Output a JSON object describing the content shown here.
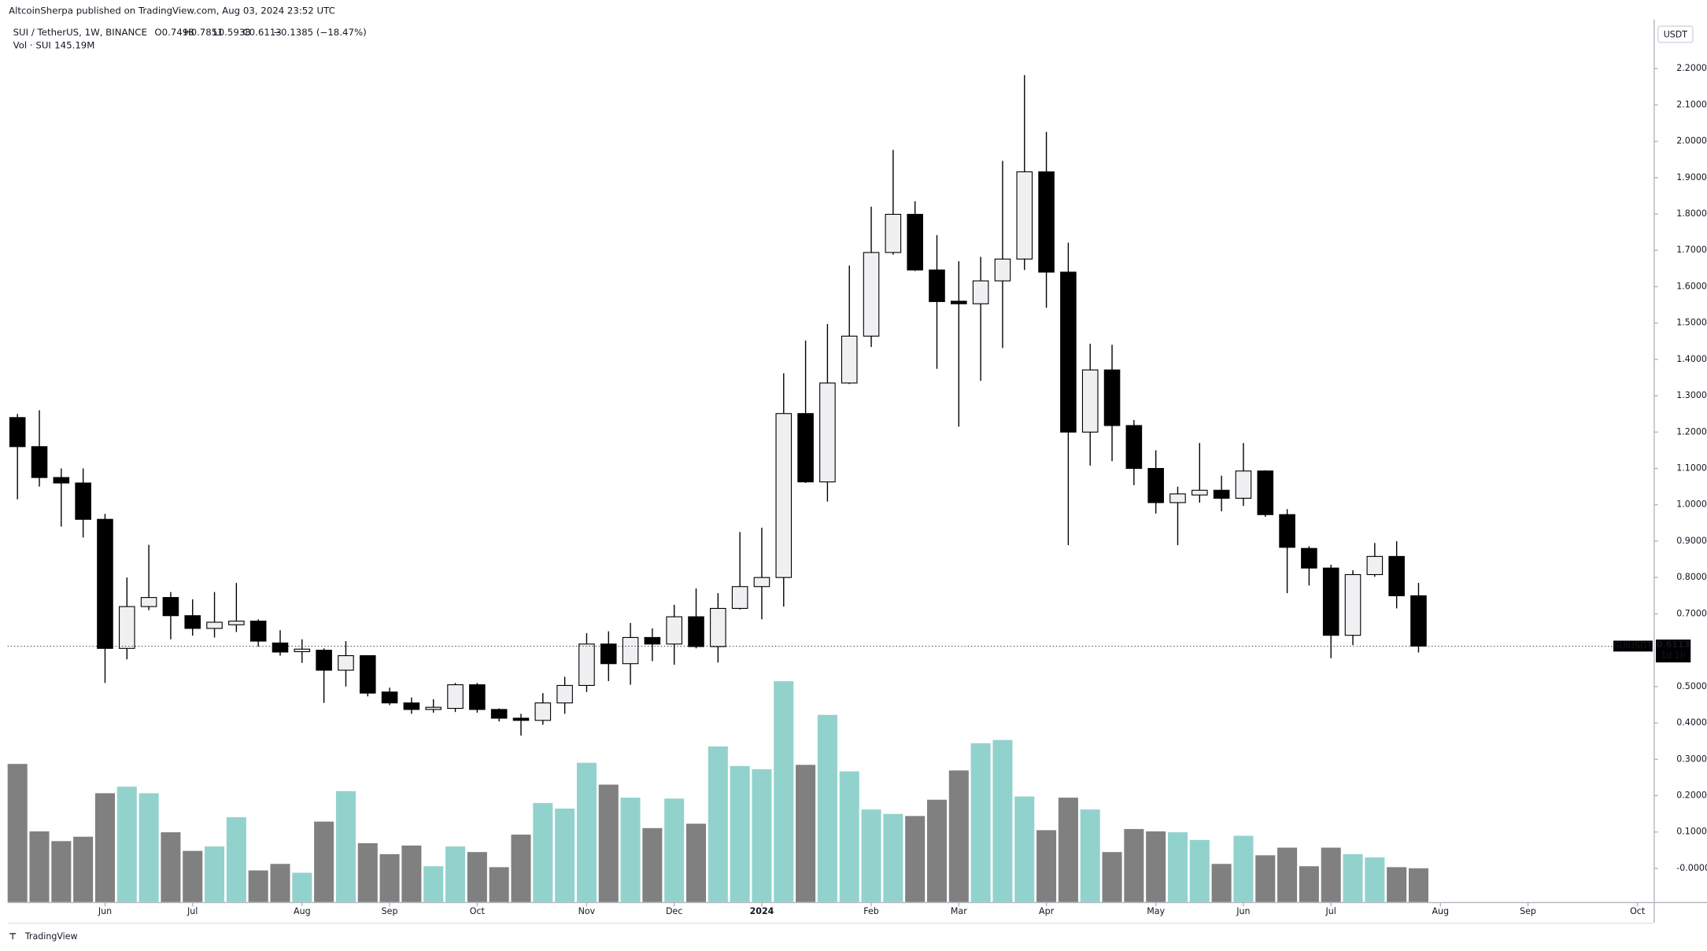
{
  "header": {
    "published": "AltcoinSherpa published on TradingView.com, Aug 03, 2024 23:52 UTC",
    "symbol": "SUI / TetherUS, 1W, BINANCE",
    "open": "O0.7498",
    "high": "H0.7851",
    "low": "L0.5938",
    "close": "C0.6113",
    "change": "−0.1385 (−18.47%)",
    "volume_label": "Vol · SUI",
    "volume_value": "145.19M"
  },
  "currency": "USDT",
  "footer": "TradingView",
  "chart_data": {
    "type": "candlestick",
    "open": [
      1.24,
      1.16,
      1.075,
      1.06,
      0.96,
      0.605,
      0.72,
      0.745,
      0.695,
      0.66,
      0.67,
      0.68,
      0.62,
      0.596,
      0.6,
      0.545,
      0.585,
      0.485,
      0.455,
      0.437,
      0.44,
      0.505,
      0.437,
      0.413,
      0.407,
      0.455,
      0.503,
      0.617,
      0.563,
      0.635,
      0.617,
      0.692,
      0.61,
      0.715,
      0.775,
      0.8,
      1.251,
      1.063,
      1.335,
      1.464,
      1.694,
      1.799,
      1.646,
      1.56,
      1.553,
      1.616,
      1.676,
      1.916,
      1.64,
      1.2,
      1.371,
      1.218,
      1.1,
      1.006,
      1.027,
      1.04,
      1.018,
      1.093,
      0.973,
      0.88,
      0.826,
      0.641,
      0.808,
      0.858,
      0.7498
    ],
    "high": [
      1.25,
      1.26,
      1.1,
      1.1,
      0.975,
      0.8,
      0.89,
      0.76,
      0.74,
      0.76,
      0.785,
      0.685,
      0.655,
      0.63,
      0.605,
      0.625,
      0.585,
      0.497,
      0.47,
      0.465,
      0.51,
      0.51,
      0.44,
      0.425,
      0.482,
      0.527,
      0.647,
      0.652,
      0.675,
      0.66,
      0.725,
      0.77,
      0.757,
      0.925,
      0.937,
      1.362,
      1.452,
      1.497,
      1.658,
      1.82,
      1.976,
      1.835,
      1.742,
      1.67,
      1.682,
      1.946,
      2.182,
      2.026,
      1.721,
      1.443,
      1.44,
      1.233,
      1.15,
      1.05,
      1.17,
      1.08,
      1.17,
      1.095,
      0.988,
      0.886,
      0.835,
      0.82,
      0.895,
      0.9,
      0.7851
    ],
    "low": [
      1.015,
      1.05,
      0.94,
      0.91,
      0.51,
      0.575,
      0.71,
      0.63,
      0.64,
      0.635,
      0.65,
      0.61,
      0.585,
      0.565,
      0.455,
      0.5,
      0.473,
      0.449,
      0.425,
      0.428,
      0.43,
      0.428,
      0.404,
      0.365,
      0.395,
      0.425,
      0.485,
      0.515,
      0.505,
      0.57,
      0.56,
      0.605,
      0.566,
      0.712,
      0.685,
      0.72,
      1.06,
      1.009,
      1.332,
      1.434,
      1.688,
      1.643,
      1.374,
      1.215,
      1.341,
      1.431,
      1.646,
      1.542,
      0.889,
      1.108,
      1.12,
      1.054,
      0.976,
      0.889,
      1.006,
      0.982,
      0.997,
      0.967,
      0.757,
      0.778,
      0.578,
      0.614,
      0.802,
      0.715,
      0.5938
    ],
    "close": [
      1.16,
      1.075,
      1.06,
      0.96,
      0.605,
      0.72,
      0.745,
      0.695,
      0.66,
      0.677,
      0.68,
      0.625,
      0.595,
      0.603,
      0.545,
      0.585,
      0.482,
      0.455,
      0.437,
      0.443,
      0.505,
      0.437,
      0.413,
      0.407,
      0.455,
      0.503,
      0.617,
      0.563,
      0.635,
      0.617,
      0.692,
      0.61,
      0.715,
      0.775,
      0.8,
      1.251,
      1.063,
      1.335,
      1.464,
      1.694,
      1.799,
      1.646,
      1.559,
      1.553,
      1.616,
      1.676,
      1.916,
      1.64,
      1.2,
      1.371,
      1.218,
      1.1,
      1.006,
      1.03,
      1.04,
      1.018,
      1.093,
      0.973,
      0.883,
      0.826,
      0.641,
      0.808,
      0.858,
      0.7498,
      0.6113
    ],
    "volume": [
      594,
      304,
      262,
      281,
      468,
      496,
      468,
      300,
      220,
      239,
      365,
      136,
      164,
      126,
      346,
      477,
      253,
      206,
      243,
      154,
      239,
      215,
      150,
      290,
      426,
      402,
      599,
      505,
      449,
      318,
      445,
      337,
      669,
      585,
      571,
      950,
      590,
      805,
      562,
      398,
      379,
      370,
      440,
      566,
      683,
      697,
      454,
      309,
      449,
      398,
      215,
      314,
      304,
      300,
      267,
      164,
      285,
      201,
      234,
      154,
      234,
      206,
      192,
      150,
      145.19
    ],
    "up_color": "#f0f0f3",
    "down_color": "#000000",
    "volume_up_color": "#92d2cc",
    "volume_down_color": "#808080",
    "xlim": [
      -0.45,
      74.74
    ],
    "xticks": [
      {
        "value": 4,
        "label": "Jun"
      },
      {
        "value": 8,
        "label": "Jul"
      },
      {
        "value": 13,
        "label": "Aug"
      },
      {
        "value": 17,
        "label": "Sep"
      },
      {
        "value": 21,
        "label": "Oct"
      },
      {
        "value": 26,
        "label": "Nov"
      },
      {
        "value": 30,
        "label": "Dec"
      },
      {
        "value": 34,
        "label": "2024"
      },
      {
        "value": 39,
        "label": "Feb"
      },
      {
        "value": 43,
        "label": "Mar"
      },
      {
        "value": 47,
        "label": "Apr"
      },
      {
        "value": 52,
        "label": "May"
      },
      {
        "value": 56,
        "label": "Jun"
      },
      {
        "value": 60,
        "label": "Jul"
      },
      {
        "value": 65,
        "label": "Aug"
      },
      {
        "value": 69,
        "label": "Sep"
      },
      {
        "value": 74,
        "label": "Oct"
      }
    ],
    "ylim": [
      -0.0927,
      2.3347
    ],
    "yticks": [
      {
        "value": 0,
        "label": "-0.0000"
      },
      {
        "value": 0.1,
        "label": "0.1000"
      },
      {
        "value": 0.2,
        "label": "0.2000"
      },
      {
        "value": 0.3,
        "label": "0.3000"
      },
      {
        "value": 0.4,
        "label": "0.4000"
      },
      {
        "value": 0.5,
        "label": "0.5000"
      },
      {
        "value": 0.7,
        "label": "0.7000"
      },
      {
        "value": 0.8,
        "label": "0.8000"
      },
      {
        "value": 0.9,
        "label": "0.9000"
      },
      {
        "value": 1.0,
        "label": "1.0000"
      },
      {
        "value": 1.1,
        "label": "1.1000"
      },
      {
        "value": 1.2,
        "label": "1.2000"
      },
      {
        "value": 1.3,
        "label": "1.3000"
      },
      {
        "value": 1.4,
        "label": "1.4000"
      },
      {
        "value": 1.5,
        "label": "1.5000"
      },
      {
        "value": 1.6,
        "label": "1.6000"
      },
      {
        "value": 1.7,
        "label": "1.7000"
      },
      {
        "value": 1.8,
        "label": "1.8000"
      },
      {
        "value": 1.9,
        "label": "1.9000"
      },
      {
        "value": 2.0,
        "label": "2.0000"
      },
      {
        "value": 2.1,
        "label": "2.1000"
      },
      {
        "value": 2.2,
        "label": "2.2000"
      }
    ],
    "price_tag": {
      "symbol": "SUIUSDT",
      "countdown": "1d 1h"
    }
  }
}
